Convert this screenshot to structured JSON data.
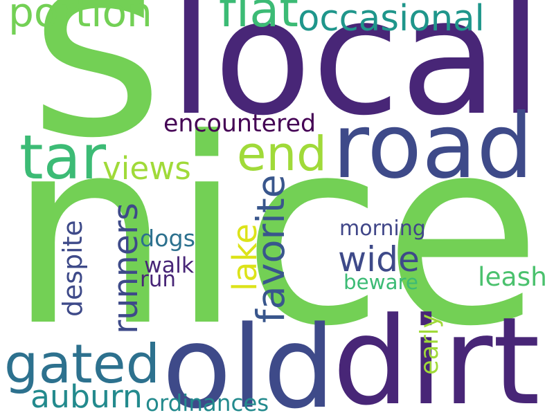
{
  "wordcloud": {
    "background": "#ffffff",
    "words": [
      {
        "id": "nice",
        "text": "nice",
        "color": "#73d055"
      },
      {
        "id": "local",
        "text": "local",
        "color": "#482677"
      },
      {
        "id": "s",
        "text": "s",
        "color": "#73d055"
      },
      {
        "id": "road",
        "text": "road",
        "color": "#3e4a89"
      },
      {
        "id": "old",
        "text": "old",
        "color": "#3e4a89"
      },
      {
        "id": "dirt",
        "text": "dirt",
        "color": "#482677"
      },
      {
        "id": "gated",
        "text": "gated",
        "color": "#2d718e"
      },
      {
        "id": "end",
        "text": "end",
        "color": "#a0da39"
      },
      {
        "id": "tar",
        "text": "tar",
        "color": "#3cbb75"
      },
      {
        "id": "portion",
        "text": "portion",
        "color": "#73d055"
      },
      {
        "id": "flat",
        "text": "flat",
        "color": "#3cbb75"
      },
      {
        "id": "occasional",
        "text": "occasional",
        "color": "#1f968b"
      },
      {
        "id": "encountered",
        "text": "encountered",
        "color": "#440154"
      },
      {
        "id": "views",
        "text": "views",
        "color": "#a0da39"
      },
      {
        "id": "favorite",
        "text": "favorite",
        "color": "#39568c"
      },
      {
        "id": "runners",
        "text": "runners",
        "color": "#3e4a89"
      },
      {
        "id": "lake",
        "text": "lake",
        "color": "#dce319"
      },
      {
        "id": "wide",
        "text": "wide",
        "color": "#3e4a89"
      },
      {
        "id": "morning",
        "text": "morning",
        "color": "#404688"
      },
      {
        "id": "dogs",
        "text": "dogs",
        "color": "#2d718e"
      },
      {
        "id": "walk",
        "text": "walk",
        "color": "#482677"
      },
      {
        "id": "run",
        "text": "run",
        "color": "#482677"
      },
      {
        "id": "despite",
        "text": "despite",
        "color": "#3e4a89"
      },
      {
        "id": "leash",
        "text": "leash",
        "color": "#4ac16d"
      },
      {
        "id": "beware",
        "text": "beware",
        "color": "#3cbb75"
      },
      {
        "id": "early",
        "text": "early",
        "color": "#a0da39"
      },
      {
        "id": "auburn",
        "text": "auburn",
        "color": "#238a8d"
      },
      {
        "id": "ordinances",
        "text": "ordinances",
        "color": "#238a8d"
      }
    ]
  }
}
